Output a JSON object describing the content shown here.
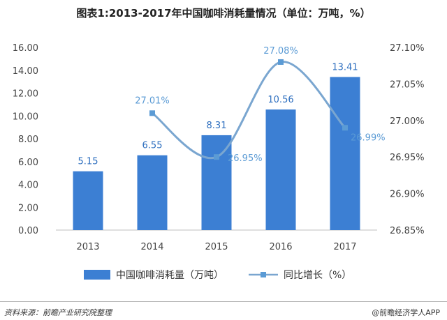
{
  "title": "图表1:2013-2017年中国咖啡消耗量情况（单位：万吨，%）",
  "footer": {
    "source": "资料来源：前瞻产业研究院整理",
    "brand": "@前瞻经济学人APP"
  },
  "colors": {
    "bar": "#3c7fd3",
    "line": "#7aa6d0",
    "marker": "#5b9bd5",
    "axis": "#bfbfbf"
  },
  "chart_data": {
    "type": "bar",
    "title": "图表1:2013-2017年中国咖啡消耗量情况（单位：万吨，%）",
    "categories": [
      "2013",
      "2014",
      "2015",
      "2016",
      "2017"
    ],
    "grid": false,
    "legend_position": "bottom",
    "y_left": {
      "ylim": [
        0,
        16
      ],
      "ticks": [
        "0.00",
        "2.00",
        "4.00",
        "6.00",
        "8.00",
        "10.00",
        "12.00",
        "14.00",
        "16.00"
      ]
    },
    "y_right": {
      "ylim": [
        26.85,
        27.1
      ],
      "ticks": [
        "26.85%",
        "26.90%",
        "26.95%",
        "27.00%",
        "27.05%",
        "27.10%"
      ]
    },
    "series": [
      {
        "name": "中国咖啡消耗量（万吨）",
        "type": "bar",
        "axis": "left",
        "values": [
          5.15,
          6.55,
          8.31,
          10.56,
          13.41
        ],
        "labels": [
          "5.15",
          "6.55",
          "8.31",
          "10.56",
          "13.41"
        ]
      },
      {
        "name": "同比增长（%）",
        "type": "line",
        "axis": "right",
        "smooth": true,
        "values": [
          null,
          27.01,
          26.95,
          27.08,
          26.99
        ],
        "labels": [
          "",
          "27.01%",
          "26.95%",
          "27.08%",
          "26.99%"
        ]
      }
    ]
  }
}
